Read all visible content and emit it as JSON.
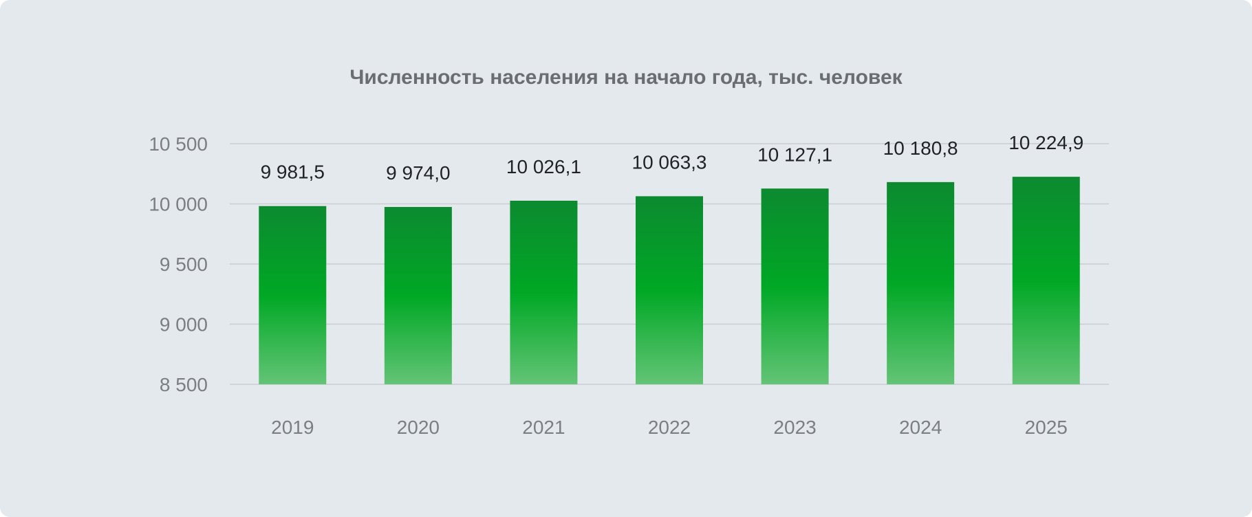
{
  "chart_data": {
    "type": "bar",
    "title": "Численность населения на начало года, тыс. человек",
    "xlabel": "",
    "ylabel": "",
    "categories": [
      "2019",
      "2020",
      "2021",
      "2022",
      "2023",
      "2024",
      "2025"
    ],
    "values": [
      9981.5,
      9974.0,
      10026.1,
      10063.3,
      10127.1,
      10180.8,
      10224.9
    ],
    "value_labels": [
      "9 981,5",
      "9 974,0",
      "10 026,1",
      "10 063,3",
      "10 127,1",
      "10 180,8",
      "10 224,9"
    ],
    "ylim": [
      8500,
      10500
    ],
    "yticks": [
      8500,
      9000,
      9500,
      10000,
      10500
    ],
    "ytick_labels": [
      "8 500",
      "9 000",
      "9 500",
      "10 000",
      "10 500"
    ],
    "grid": true,
    "legend": "none",
    "colors": {
      "background": "#e4e9ed",
      "bar_top": "#0c8a30",
      "bar_mid": "#00a825",
      "bar_bottom": "#63c476",
      "gridline": "#c9ced3"
    }
  }
}
